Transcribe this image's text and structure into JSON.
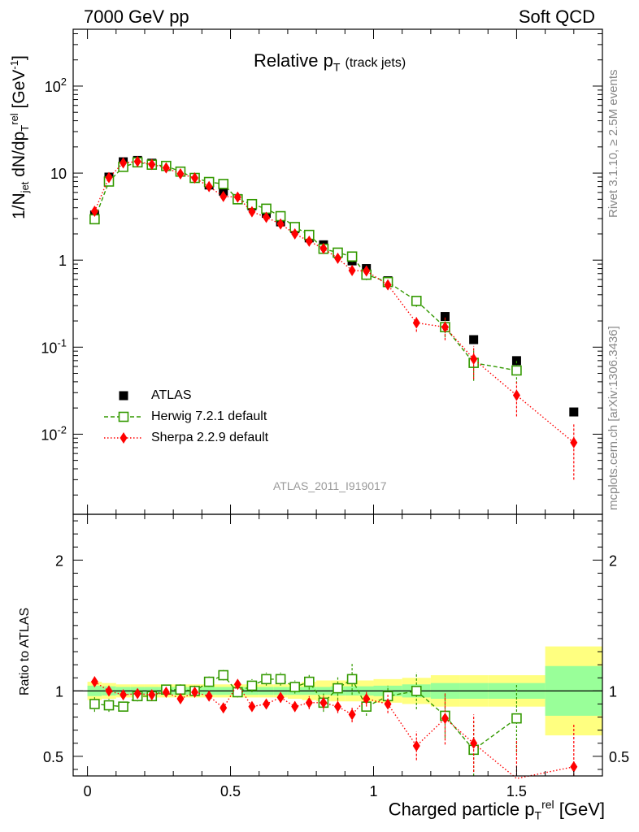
{
  "header": {
    "left": "7000 GeV pp",
    "right": "Soft QCD"
  },
  "side_labels": {
    "rivet": "Rivet 3.1.10, ≥ 2.5M events",
    "mcplots": "mcplots.cern.ch [arXiv:1306.3436]"
  },
  "chart_data": [
    {
      "type": "scatter",
      "title": "Relative p_T (track jets)",
      "analysis_label": "ATLAS_2011_I919017",
      "xlabel": "Charged particle p_T^rel [GeV]",
      "ylabel": "1/N_jet dN/dp_T^rel [GeV^-1]",
      "yscale": "log",
      "xlim": [
        -0.05,
        1.8
      ],
      "ylim": [
        0.0012,
        450
      ],
      "x_ticks": [
        "0",
        "0.5",
        "1",
        "1.5"
      ],
      "y_ticks": [
        "10^-2",
        "10^-1",
        "1",
        "10",
        "10^2"
      ],
      "legend_position": "lower-left",
      "series": [
        {
          "name": "ATLAS",
          "color": "#000000",
          "marker": "filled-square",
          "x": [
            0.025,
            0.075,
            0.125,
            0.175,
            0.225,
            0.275,
            0.325,
            0.375,
            0.425,
            0.475,
            0.525,
            0.575,
            0.625,
            0.675,
            0.725,
            0.775,
            0.825,
            0.875,
            0.925,
            0.975,
            1.05,
            1.15,
            1.25,
            1.35,
            1.5,
            1.7
          ],
          "y": [
            3.3,
            9.0,
            13.5,
            14.0,
            13.0,
            12.0,
            10.5,
            8.8,
            7.3,
            6.2,
            5.1,
            4.2,
            3.45,
            2.75,
            2.3,
            1.8,
            1.5,
            1.2,
            0.98,
            0.8,
            0.58,
            0.34,
            0.225,
            0.122,
            0.07,
            0.018
          ]
        },
        {
          "name": "Herwig 7.2.1 default",
          "color": "#339900",
          "marker": "open-square",
          "line": "dashed",
          "x": [
            0.025,
            0.075,
            0.125,
            0.175,
            0.225,
            0.275,
            0.325,
            0.375,
            0.425,
            0.475,
            0.525,
            0.575,
            0.625,
            0.675,
            0.725,
            0.775,
            0.825,
            0.875,
            0.925,
            0.975,
            1.05,
            1.15,
            1.25,
            1.35,
            1.5
          ],
          "y": [
            2.95,
            8.0,
            11.8,
            13.3,
            12.5,
            12.1,
            10.4,
            8.8,
            7.9,
            7.5,
            5.0,
            4.4,
            3.9,
            3.2,
            2.4,
            1.95,
            1.35,
            1.22,
            1.1,
            0.68,
            0.56,
            0.34,
            0.17,
            0.066,
            0.054
          ],
          "yerr": [
            0.25,
            0.6,
            0.8,
            0.8,
            0.7,
            0.7,
            0.6,
            0.5,
            0.5,
            0.5,
            0.35,
            0.3,
            0.3,
            0.25,
            0.2,
            0.18,
            0.13,
            0.12,
            0.15,
            0.09,
            0.06,
            0.05,
            0.04,
            0.025,
            0.016
          ]
        },
        {
          "name": "Sherpa 2.2.9 default",
          "color": "#ff0000",
          "marker": "diamond",
          "line": "dotted",
          "x": [
            0.025,
            0.075,
            0.125,
            0.175,
            0.225,
            0.275,
            0.325,
            0.375,
            0.425,
            0.475,
            0.525,
            0.575,
            0.625,
            0.675,
            0.725,
            0.775,
            0.825,
            0.875,
            0.925,
            0.975,
            1.05,
            1.15,
            1.25,
            1.35,
            1.5,
            1.7
          ],
          "y": [
            3.65,
            8.9,
            13.1,
            13.6,
            12.6,
            11.5,
            9.8,
            8.8,
            7.0,
            5.4,
            5.3,
            3.6,
            3.1,
            2.6,
            2.0,
            1.65,
            1.36,
            1.05,
            0.76,
            0.75,
            0.52,
            0.19,
            0.17,
            0.073,
            0.028,
            0.008
          ],
          "yerr": [
            0.25,
            0.5,
            0.7,
            0.7,
            0.6,
            0.6,
            0.5,
            0.5,
            0.4,
            0.35,
            0.35,
            0.25,
            0.22,
            0.2,
            0.16,
            0.14,
            0.12,
            0.1,
            0.08,
            0.09,
            0.06,
            0.04,
            0.05,
            0.03,
            0.012,
            0.005
          ]
        }
      ]
    },
    {
      "type": "scatter",
      "ylabel": "Ratio to ATLAS",
      "xlim": [
        -0.05,
        1.8
      ],
      "ylim": [
        0.35,
        2.35
      ],
      "x_ticks": [
        "0",
        "0.5",
        "1",
        "1.5"
      ],
      "y_ticks": [
        "0.5",
        "1",
        "2"
      ],
      "reference_line": 1,
      "bands": {
        "edges": [
          0.0,
          0.05,
          0.1,
          0.15,
          0.2,
          0.25,
          0.3,
          0.35,
          0.4,
          0.45,
          0.5,
          0.55,
          0.6,
          0.65,
          0.7,
          0.75,
          0.8,
          0.85,
          0.9,
          0.95,
          1.0,
          1.1,
          1.2,
          1.3,
          1.4,
          1.6,
          1.8
        ],
        "inner_half": [
          0.04,
          0.035,
          0.03,
          0.03,
          0.03,
          0.03,
          0.03,
          0.03,
          0.03,
          0.03,
          0.03,
          0.03,
          0.03,
          0.03,
          0.03,
          0.03,
          0.03,
          0.035,
          0.035,
          0.035,
          0.04,
          0.05,
          0.06,
          0.06,
          0.06,
          0.19
        ],
        "outer_half": [
          0.07,
          0.06,
          0.05,
          0.05,
          0.05,
          0.05,
          0.05,
          0.05,
          0.05,
          0.05,
          0.05,
          0.05,
          0.05,
          0.05,
          0.06,
          0.07,
          0.08,
          0.08,
          0.08,
          0.08,
          0.09,
          0.1,
          0.12,
          0.12,
          0.12,
          0.34
        ],
        "inner_color": "#99ff99",
        "outer_color": "#ffff80"
      },
      "series": [
        {
          "name": "Herwig 7.2.1 default",
          "color": "#339900",
          "marker": "open-square",
          "line": "dashed",
          "x": [
            0.025,
            0.075,
            0.125,
            0.175,
            0.225,
            0.275,
            0.325,
            0.375,
            0.425,
            0.475,
            0.525,
            0.575,
            0.625,
            0.675,
            0.725,
            0.775,
            0.825,
            0.875,
            0.925,
            0.975,
            1.05,
            1.15,
            1.25,
            1.35,
            1.5
          ],
          "y": [
            0.9,
            0.89,
            0.88,
            0.96,
            0.96,
            1.01,
            1.01,
            1.0,
            1.07,
            1.12,
            0.99,
            1.04,
            1.09,
            1.09,
            1.03,
            1.07,
            0.91,
            1.02,
            1.09,
            0.88,
            0.96,
            1.0,
            0.81,
            0.55,
            0.79
          ],
          "yerr": [
            0.06,
            0.05,
            0.03,
            0.04,
            0.03,
            0.03,
            0.04,
            0.04,
            0.04,
            0.04,
            0.04,
            0.05,
            0.05,
            0.05,
            0.05,
            0.06,
            0.07,
            0.09,
            0.12,
            0.07,
            0.08,
            0.14,
            0.17,
            0.22,
            0.26
          ]
        },
        {
          "name": "Sherpa 2.2.9 default",
          "color": "#ff0000",
          "marker": "diamond",
          "line": "dotted",
          "x": [
            0.025,
            0.075,
            0.125,
            0.175,
            0.225,
            0.275,
            0.325,
            0.375,
            0.425,
            0.475,
            0.525,
            0.575,
            0.625,
            0.675,
            0.725,
            0.775,
            0.825,
            0.875,
            0.925,
            0.975,
            1.05,
            1.15,
            1.25,
            1.35,
            1.5,
            1.7
          ],
          "y": [
            1.07,
            1.0,
            0.97,
            0.98,
            0.97,
            0.99,
            0.94,
            0.99,
            0.96,
            0.87,
            1.05,
            0.88,
            0.9,
            0.95,
            0.88,
            0.91,
            0.91,
            0.88,
            0.82,
            0.94,
            0.9,
            0.58,
            0.79,
            0.6,
            0.33,
            0.42
          ],
          "yerr": [
            0.04,
            0.03,
            0.02,
            0.02,
            0.02,
            0.02,
            0.03,
            0.03,
            0.03,
            0.03,
            0.03,
            0.03,
            0.03,
            0.04,
            0.04,
            0.05,
            0.05,
            0.05,
            0.06,
            0.06,
            0.07,
            0.11,
            0.2,
            0.22,
            0.3,
            0.33
          ]
        }
      ]
    }
  ]
}
